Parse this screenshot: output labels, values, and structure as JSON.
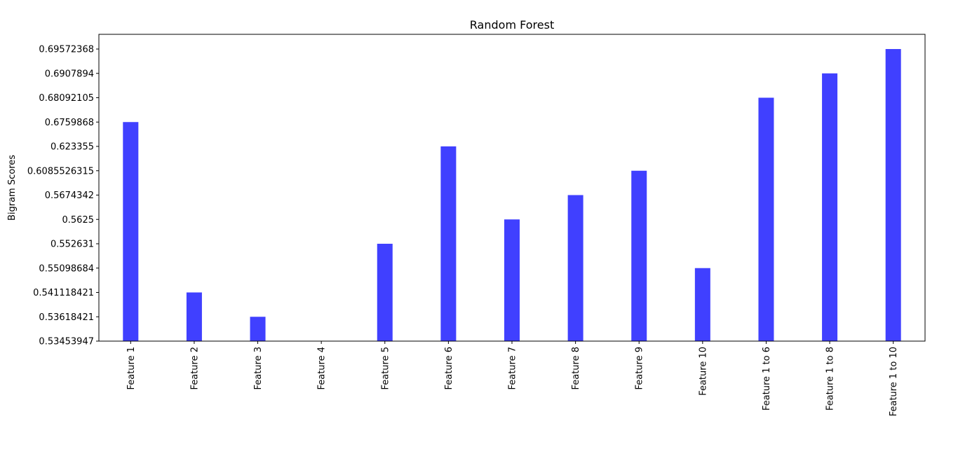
{
  "chart_data": {
    "type": "bar",
    "title": "Random Forest",
    "xlabel": "",
    "ylabel": "Bigram Scores",
    "categories": [
      "Feature 1",
      "Feature 2",
      "Feature 3",
      "Feature 4",
      "Feature 5",
      "Feature 6",
      "Feature 7",
      "Feature 8",
      "Feature 9",
      "Feature 10",
      "Feature 1 to 6",
      "Feature 1 to 8",
      "Feature 1 to 10"
    ],
    "y_tick_labels": [
      "0.53453947",
      "0.53618421",
      "0.541118421",
      "0.55098684",
      "0.552631",
      "0.5625",
      "0.5674342",
      "0.6085526315",
      "0.623355",
      "0.6759868",
      "0.68092105",
      "0.6907894",
      "0.69572368"
    ],
    "values": [
      "0.6759868",
      "0.541118421",
      "0.53618421",
      "0.53453947",
      "0.552631",
      "0.623355",
      "0.5625",
      "0.5674342",
      "0.6085526315",
      "0.55098684",
      "0.68092105",
      "0.6907894",
      "0.69572368"
    ],
    "bar_color": "#4040ff",
    "axis_scale": "categorical",
    "grid": false,
    "legend": "none"
  }
}
